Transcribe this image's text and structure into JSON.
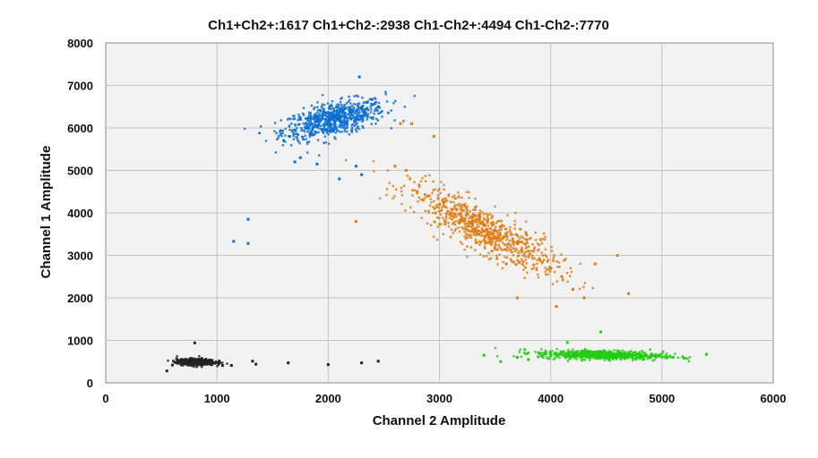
{
  "chart_data": {
    "type": "scatter",
    "title": "Ch1+Ch2+:1617  Ch1+Ch2-:2938  Ch1-Ch2+:4494  Ch1-Ch2-:7770",
    "xlabel": "Channel 2 Amplitude",
    "ylabel": "Channel 1 Amplitude",
    "xlim": [
      0,
      6000
    ],
    "ylim": [
      0,
      8000
    ],
    "xticks": [
      0,
      1000,
      2000,
      3000,
      4000,
      5000,
      6000
    ],
    "yticks": [
      0,
      1000,
      2000,
      3000,
      4000,
      5000,
      6000,
      7000,
      8000
    ],
    "grid": true,
    "background": "#f2f2f2",
    "series": [
      {
        "color": "#0a6ed1",
        "count": 1617,
        "center": [
          2000,
          6100
        ],
        "points": [
          [
            1700,
            5950
          ],
          [
            1800,
            6000
          ],
          [
            1900,
            6050
          ],
          [
            2000,
            6150
          ],
          [
            2100,
            6250
          ],
          [
            2200,
            6350
          ],
          [
            2300,
            6450
          ],
          [
            2400,
            6550
          ],
          [
            1650,
            5800
          ],
          [
            1750,
            6200
          ],
          [
            1850,
            5850
          ],
          [
            1950,
            6300
          ],
          [
            2050,
            5950
          ],
          [
            2150,
            6450
          ],
          [
            2250,
            6200
          ],
          [
            2350,
            6600
          ],
          [
            2450,
            6500
          ],
          [
            1600,
            5700
          ],
          [
            2280,
            7200
          ],
          [
            1280,
            3850
          ],
          [
            1150,
            3330
          ],
          [
            1280,
            3280
          ],
          [
            2250,
            5100
          ],
          [
            2100,
            4800
          ],
          [
            2300,
            4900
          ],
          [
            1700,
            5200
          ],
          [
            1750,
            5300
          ],
          [
            1900,
            5150
          ]
        ]
      },
      {
        "color": "#e07b10",
        "count": 2938,
        "center": [
          3350,
          3700
        ],
        "points": [
          [
            2800,
            4500
          ],
          [
            2900,
            4400
          ],
          [
            3000,
            4200
          ],
          [
            3100,
            4000
          ],
          [
            3200,
            3900
          ],
          [
            3300,
            3800
          ],
          [
            3400,
            3700
          ],
          [
            3500,
            3600
          ],
          [
            3600,
            3500
          ],
          [
            3700,
            3300
          ],
          [
            3800,
            3100
          ],
          [
            3900,
            2900
          ],
          [
            4000,
            2700
          ],
          [
            4100,
            2500
          ],
          [
            4200,
            2200
          ],
          [
            4300,
            2000
          ],
          [
            4400,
            2800
          ],
          [
            2600,
            5100
          ],
          [
            2700,
            5000
          ],
          [
            2950,
            5800
          ],
          [
            2650,
            6100
          ],
          [
            2750,
            6100
          ],
          [
            2250,
            3800
          ],
          [
            3700,
            2000
          ],
          [
            4050,
            1800
          ],
          [
            4700,
            2100
          ],
          [
            4600,
            3000
          ],
          [
            3450,
            3300
          ],
          [
            3600,
            2800
          ],
          [
            3250,
            3600
          ]
        ]
      },
      {
        "color": "#22cc11",
        "count": 4494,
        "center": [
          4450,
          660
        ],
        "points": [
          [
            3900,
            700
          ],
          [
            4000,
            680
          ],
          [
            4100,
            720
          ],
          [
            4200,
            700
          ],
          [
            4300,
            650
          ],
          [
            4400,
            680
          ],
          [
            4500,
            640
          ],
          [
            4600,
            660
          ],
          [
            4700,
            630
          ],
          [
            4800,
            650
          ],
          [
            4900,
            620
          ],
          [
            5000,
            610
          ],
          [
            5100,
            600
          ],
          [
            5200,
            580
          ],
          [
            5400,
            670
          ],
          [
            3400,
            650
          ],
          [
            3550,
            500
          ],
          [
            3700,
            600
          ],
          [
            3800,
            550
          ],
          [
            4450,
            1200
          ],
          [
            4150,
            950
          ]
        ]
      },
      {
        "color": "#222222",
        "count": 7770,
        "center": [
          800,
          480
        ],
        "points": [
          [
            650,
            500
          ],
          [
            700,
            480
          ],
          [
            750,
            520
          ],
          [
            800,
            490
          ],
          [
            850,
            470
          ],
          [
            900,
            500
          ],
          [
            950,
            480
          ],
          [
            980,
            460
          ],
          [
            600,
            420
          ],
          [
            550,
            280
          ],
          [
            800,
            940
          ],
          [
            1050,
            410
          ],
          [
            1130,
            410
          ],
          [
            1320,
            510
          ],
          [
            1350,
            440
          ],
          [
            1640,
            470
          ],
          [
            2000,
            430
          ],
          [
            2300,
            470
          ],
          [
            2450,
            510
          ]
        ]
      }
    ]
  }
}
